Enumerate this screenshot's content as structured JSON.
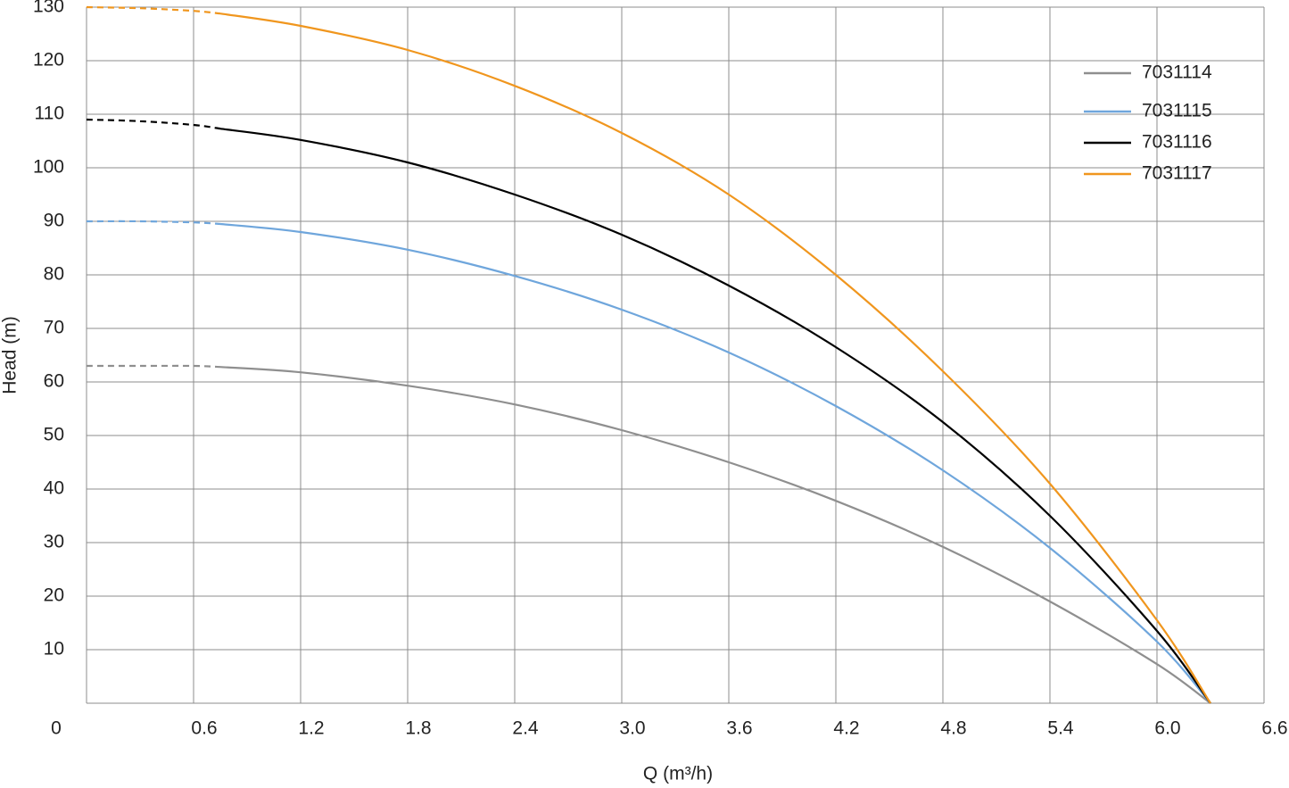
{
  "chart_data": {
    "type": "line",
    "xlabel": "Q (m³/h)",
    "ylabel": "Head (m)",
    "x": [
      0,
      0.3,
      0.6,
      0.75,
      1.2,
      1.8,
      2.4,
      3.0,
      3.6,
      4.2,
      4.8,
      5.4,
      6.0,
      6.3
    ],
    "dashed_range": [
      0,
      0.75
    ],
    "series": [
      {
        "name": "7031114",
        "color": "#8f8f8f",
        "values": [
          63,
          63,
          63,
          62.8,
          61.8,
          59.3,
          55.8,
          51,
          45,
          37.8,
          29.2,
          19,
          7.3,
          0
        ]
      },
      {
        "name": "7031115",
        "color": "#6fa6dc",
        "values": [
          90,
          90,
          89.8,
          89.5,
          88,
          84.7,
          79.8,
          73.5,
          65.5,
          55.5,
          43.5,
          29,
          11.5,
          0
        ]
      },
      {
        "name": "7031116",
        "color": "#000000",
        "values": [
          109,
          108.7,
          108,
          107.3,
          105.2,
          101,
          95,
          87.5,
          78,
          66.5,
          52.5,
          35,
          13.5,
          0
        ]
      },
      {
        "name": "7031117",
        "color": "#f0961e",
        "values": [
          130,
          129.8,
          129.3,
          128.8,
          126.5,
          122,
          115.3,
          106.5,
          95,
          80,
          62,
          41,
          15.5,
          0
        ]
      }
    ],
    "xlim": [
      0,
      6.6
    ],
    "xticks": [
      0,
      0.6,
      1.2,
      1.8,
      2.4,
      {
        "value": 3,
        "label": "3.0"
      },
      3.6,
      4.2,
      4.8,
      5.4,
      {
        "value": 6,
        "label": "6.0"
      },
      6.6
    ],
    "ylim": [
      0,
      130
    ],
    "yticks": [
      10,
      20,
      30,
      40,
      50,
      60,
      70,
      80,
      90,
      100,
      110,
      120,
      130
    ],
    "grid": true,
    "legend": "upper right"
  }
}
